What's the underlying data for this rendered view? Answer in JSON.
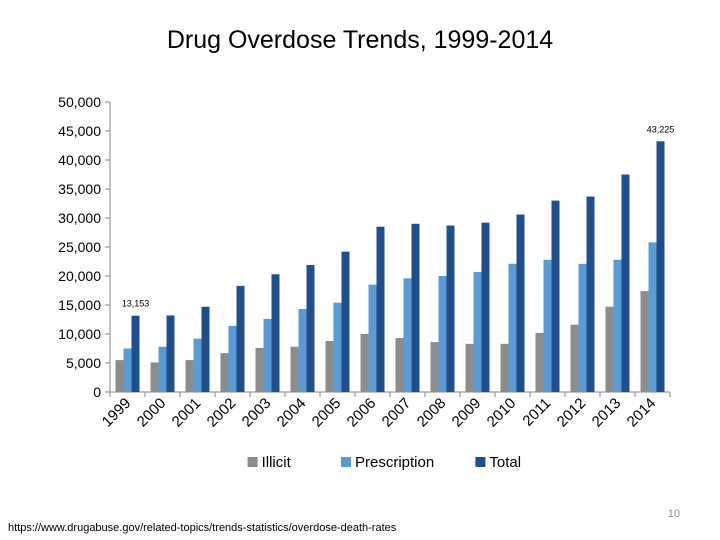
{
  "slide": {
    "source": "https://www.drugabuse.gov/related-topics/trends-statistics/overdose-death-rates",
    "page_number": "10"
  },
  "chart_data": {
    "type": "bar",
    "title": "Drug Overdose Trends, 1999-2014",
    "xlabel": "",
    "ylabel": "",
    "categories": [
      "1999",
      "2000",
      "2001",
      "2002",
      "2003",
      "2004",
      "2005",
      "2006",
      "2007",
      "2008",
      "2009",
      "2010",
      "2011",
      "2012",
      "2013",
      "2014"
    ],
    "ylim": [
      0,
      50000
    ],
    "yticks": [
      0,
      5000,
      10000,
      15000,
      20000,
      25000,
      30000,
      35000,
      40000,
      45000,
      50000
    ],
    "ytick_labels": [
      "0",
      "5,000",
      "10,000",
      "15,000",
      "20,000",
      "25,000",
      "30,000",
      "35,000",
      "40,000",
      "45,000",
      "50,000"
    ],
    "grid": false,
    "legend_position": "bottom",
    "series": [
      {
        "name": "Illicit",
        "color": "#8c8c8c",
        "values": [
          5500,
          5100,
          5500,
          6700,
          7600,
          7800,
          8800,
          10000,
          9300,
          8600,
          8300,
          8300,
          10200,
          11600,
          14700,
          17400
        ]
      },
      {
        "name": "Prescription",
        "color": "#5b9bd5",
        "values": [
          7500,
          7800,
          9200,
          11400,
          12600,
          14300,
          15400,
          18500,
          19600,
          20000,
          20700,
          22100,
          22800,
          22100,
          22800,
          25800
        ]
      },
      {
        "name": "Total",
        "color": "#1f4e8c",
        "values": [
          13153,
          13200,
          14700,
          18300,
          20300,
          21900,
          24200,
          28500,
          29000,
          28700,
          29200,
          30600,
          33000,
          33700,
          37500,
          43225
        ]
      }
    ],
    "annotations": [
      {
        "series": "Total",
        "category": "1999",
        "text": "13,153"
      },
      {
        "series": "Total",
        "category": "2014",
        "text": "43,225"
      }
    ]
  }
}
